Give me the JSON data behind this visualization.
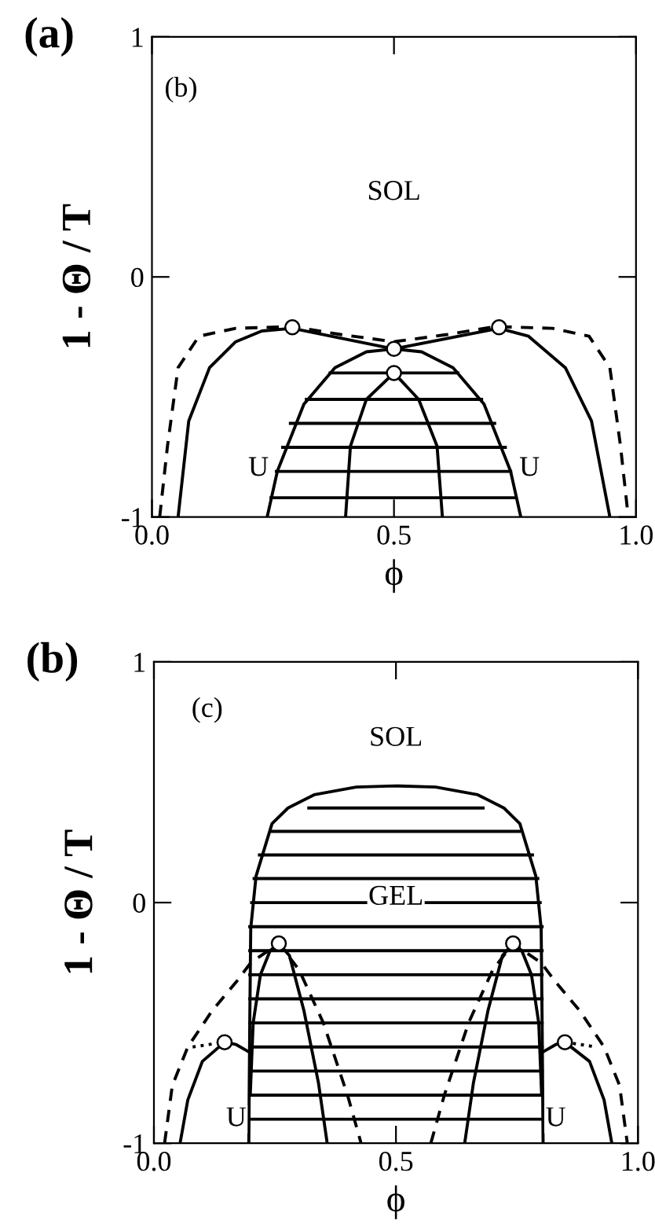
{
  "chart_data": [
    {
      "type": "line",
      "title": "(a)",
      "xlabel": "ϕ",
      "ylabel": "1 - Θ / T",
      "xlim": [
        0,
        1
      ],
      "ylim": [
        -1,
        1
      ],
      "xticks": [
        {
          "value": 0,
          "label": "0.0"
        },
        {
          "value": 0.5,
          "label": "0.5"
        },
        {
          "value": 1,
          "label": "1.0"
        }
      ],
      "yticks": [
        -1,
        0,
        1
      ],
      "grid": false,
      "legend": false,
      "annotations": [
        "(b)",
        "SOL",
        "U",
        "U"
      ],
      "series": [
        {
          "color": "#000000",
          "line_style": "dashed",
          "x": [
            0.016,
            0.032,
            0.054,
            0.097,
            0.173,
            0.29,
            0.39,
            0.5,
            0.61,
            0.71,
            0.827,
            0.903,
            0.946,
            0.968,
            0.984
          ],
          "values": [
            -1,
            -0.705,
            -0.378,
            -0.247,
            -0.214,
            -0.207,
            -0.24,
            -0.27,
            -0.24,
            -0.207,
            -0.214,
            -0.247,
            -0.378,
            -0.705,
            -1
          ]
        },
        {
          "color": "#000000",
          "line_style": "solid",
          "x": [
            0.054,
            0.076,
            0.119,
            0.173,
            0.227,
            0.29,
            0.5,
            0.717,
            0.778,
            0.854,
            0.908,
            0.946
          ],
          "values": [
            -1,
            -0.6,
            -0.378,
            -0.27,
            -0.225,
            -0.214,
            -0.3,
            -0.214,
            -0.247,
            -0.378,
            -0.6,
            -1
          ]
        },
        {
          "color": "#000000",
          "line_style": "solid",
          "x": [
            0.238,
            0.259,
            0.314,
            0.378,
            0.443,
            0.5,
            0.557,
            0.622,
            0.686,
            0.741,
            0.762
          ],
          "values": [
            -1,
            -0.81,
            -0.53,
            -0.378,
            -0.312,
            -0.3,
            -0.312,
            -0.378,
            -0.53,
            -0.81,
            -1
          ]
        },
        {
          "color": "#000000",
          "line_style": "solid",
          "x": [
            0.4,
            0.41,
            0.443,
            0.5,
            0.551,
            0.589,
            0.6
          ],
          "values": [
            -1,
            -0.705,
            -0.51,
            -0.4,
            -0.51,
            -0.705,
            -1
          ]
        },
        {
          "color": "#000000",
          "line_style": "solid",
          "x": [
            0.368,
            0.632
          ],
          "values": [
            -0.4,
            -0.4
          ]
        },
        {
          "color": "#000000",
          "line_style": "solid",
          "x": [
            0.319,
            0.681
          ],
          "values": [
            -0.51,
            -0.51
          ]
        },
        {
          "color": "#000000",
          "line_style": "solid",
          "x": [
            0.286,
            0.708
          ],
          "values": [
            -0.61,
            -0.61
          ]
        },
        {
          "color": "#000000",
          "line_style": "solid",
          "x": [
            0.27,
            0.73
          ],
          "values": [
            -0.71,
            -0.71
          ]
        },
        {
          "color": "#000000",
          "line_style": "solid",
          "x": [
            0.257,
            0.741
          ],
          "values": [
            -0.81,
            -0.81
          ]
        },
        {
          "color": "#000000",
          "line_style": "solid",
          "x": [
            0.246,
            0.751
          ],
          "values": [
            -0.92,
            -0.92
          ]
        },
        {
          "type": "scatter",
          "marker": "circle",
          "color": "#000000",
          "x": [
            0.29,
            0.5,
            0.5,
            0.717
          ],
          "values": [
            -0.21,
            -0.3,
            -0.4,
            -0.21
          ]
        }
      ]
    },
    {
      "type": "line",
      "title": "(b)",
      "xlabel": "ϕ",
      "ylabel": "1 - Θ / T",
      "xlim": [
        0,
        1
      ],
      "ylim": [
        -1,
        1
      ],
      "xticks": [
        {
          "value": 0,
          "label": "0.0"
        },
        {
          "value": 0.5,
          "label": "0.5"
        },
        {
          "value": 1,
          "label": "1.0"
        }
      ],
      "yticks": [
        -1,
        0,
        1
      ],
      "grid": false,
      "legend": false,
      "annotations": [
        "(c)",
        "SOL",
        "GEL",
        "U",
        "U"
      ],
      "series": [
        {
          "color": "#000000",
          "line_style": "solid",
          "x": [
            0.196,
            0.198,
            0.2,
            0.211,
            0.244,
            0.277,
            0.331,
            0.418,
            0.5,
            0.582,
            0.669,
            0.723,
            0.756,
            0.789,
            0.8,
            0.802,
            0.804
          ],
          "values": [
            -1,
            -0.5,
            -0.107,
            0.11,
            0.328,
            0.393,
            0.448,
            0.48,
            0.485,
            0.48,
            0.448,
            0.393,
            0.328,
            0.11,
            -0.107,
            -0.5,
            -1
          ]
        },
        {
          "color": "#000000",
          "line_style": "solid",
          "x": [
            0.32,
            0.68
          ],
          "values": [
            0.393,
            0.393
          ]
        },
        {
          "color": "#000000",
          "line_style": "solid",
          "x": [
            0.245,
            0.755
          ],
          "values": [
            0.296,
            0.296
          ]
        },
        {
          "color": "#000000",
          "line_style": "solid",
          "x": [
            0.218,
            0.782
          ],
          "values": [
            0.198,
            0.198
          ]
        },
        {
          "color": "#000000",
          "line_style": "solid",
          "x": [
            0.207,
            0.793
          ],
          "values": [
            0.1,
            0.1
          ]
        },
        {
          "color": "#000000",
          "line_style": "solid",
          "x": [
            0.202,
            0.798
          ],
          "values": [
            0,
            0
          ]
        },
        {
          "color": "#000000",
          "line_style": "solid",
          "x": [
            0.198,
            0.802
          ],
          "values": [
            -0.1,
            -0.1
          ]
        },
        {
          "color": "#000000",
          "line_style": "solid",
          "x": [
            0.198,
            0.802
          ],
          "values": [
            -0.2,
            -0.2
          ]
        },
        {
          "color": "#000000",
          "line_style": "solid",
          "x": [
            0.198,
            0.802
          ],
          "values": [
            -0.3,
            -0.3
          ]
        },
        {
          "color": "#000000",
          "line_style": "solid",
          "x": [
            0.198,
            0.802
          ],
          "values": [
            -0.4,
            -0.4
          ]
        },
        {
          "color": "#000000",
          "line_style": "solid",
          "x": [
            0.198,
            0.802
          ],
          "values": [
            -0.5,
            -0.5
          ]
        },
        {
          "color": "#000000",
          "line_style": "solid",
          "x": [
            0.198,
            0.802
          ],
          "values": [
            -0.6,
            -0.6
          ]
        },
        {
          "color": "#000000",
          "line_style": "solid",
          "x": [
            0.198,
            0.802
          ],
          "values": [
            -0.7,
            -0.7
          ]
        },
        {
          "color": "#000000",
          "line_style": "solid",
          "x": [
            0.198,
            0.802
          ],
          "values": [
            -0.8,
            -0.8
          ]
        },
        {
          "color": "#000000",
          "line_style": "solid",
          "x": [
            0.198,
            0.802
          ],
          "values": [
            -0.9,
            -0.9
          ]
        },
        {
          "color": "#000000",
          "line_style": "solid",
          "x": [
            0.199,
            0.205,
            0.22,
            0.24,
            0.258,
            0.28,
            0.31,
            0.34,
            0.358
          ],
          "values": [
            -0.8,
            -0.5,
            -0.3,
            -0.2,
            -0.17,
            -0.22,
            -0.45,
            -0.75,
            -1
          ]
        },
        {
          "color": "#000000",
          "line_style": "solid",
          "x": [
            0.642,
            0.66,
            0.69,
            0.72,
            0.742,
            0.76,
            0.78,
            0.795,
            0.801
          ],
          "values": [
            -1,
            -0.75,
            -0.45,
            -0.22,
            -0.17,
            -0.2,
            -0.3,
            -0.5,
            -0.8
          ]
        },
        {
          "color": "#000000",
          "line_style": "dashed",
          "x": [
            0.022,
            0.038,
            0.07,
            0.12,
            0.17,
            0.2,
            0.258,
            0.3,
            0.35,
            0.4,
            0.428
          ],
          "values": [
            -1,
            -0.76,
            -0.6,
            -0.45,
            -0.33,
            -0.25,
            -0.17,
            -0.28,
            -0.5,
            -0.8,
            -1
          ]
        },
        {
          "color": "#000000",
          "line_style": "dashed",
          "x": [
            0.572,
            0.6,
            0.65,
            0.7,
            0.742,
            0.8,
            0.83,
            0.88,
            0.93,
            0.962,
            0.978
          ],
          "values": [
            -1,
            -0.8,
            -0.5,
            -0.28,
            -0.17,
            -0.25,
            -0.33,
            -0.45,
            -0.6,
            -0.76,
            -1
          ]
        },
        {
          "color": "#000000",
          "line_style": "solid",
          "x": [
            0.054,
            0.07,
            0.1,
            0.146,
            0.17,
            0.196
          ],
          "values": [
            -1,
            -0.82,
            -0.66,
            -0.58,
            -0.59,
            -0.62
          ]
        },
        {
          "color": "#000000",
          "line_style": "solid",
          "x": [
            0.804,
            0.83,
            0.849,
            0.9,
            0.93,
            0.946
          ],
          "values": [
            -0.62,
            -0.59,
            -0.58,
            -0.66,
            -0.82,
            -1
          ]
        },
        {
          "color": "#000000",
          "line_style": "dotted",
          "x": [
            0.08,
            0.146
          ],
          "values": [
            -0.6,
            -0.58
          ]
        },
        {
          "color": "#000000",
          "line_style": "dotted",
          "x": [
            0.849,
            0.915
          ],
          "values": [
            -0.58,
            -0.6
          ]
        },
        {
          "type": "scatter",
          "marker": "circle",
          "color": "#000000",
          "x": [
            0.146,
            0.258,
            0.742,
            0.849
          ],
          "values": [
            -0.58,
            -0.17,
            -0.17,
            -0.58
          ]
        }
      ]
    }
  ]
}
